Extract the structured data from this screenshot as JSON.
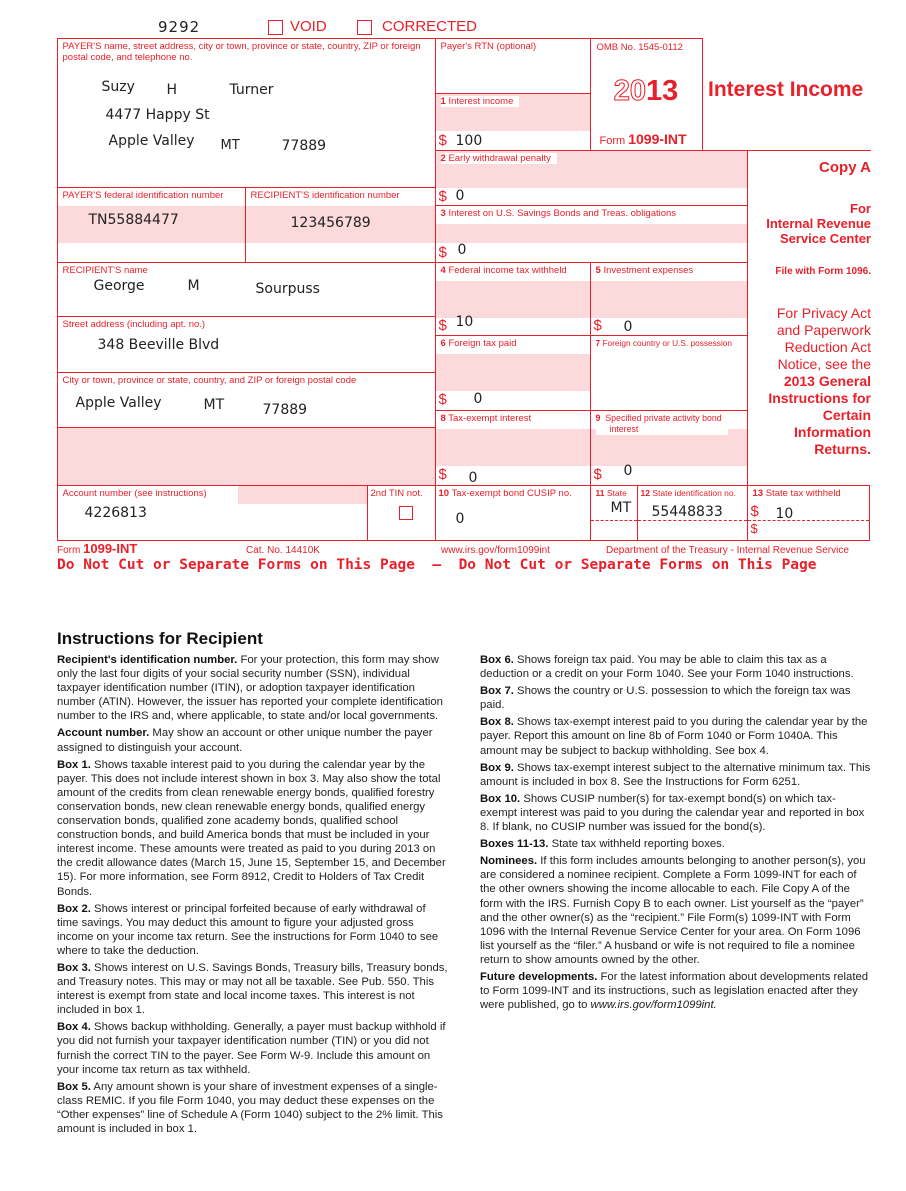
{
  "header": {
    "form_id": "9292",
    "void_label": "VOID",
    "corrected_label": "CORRECTED",
    "void_checked": false,
    "corrected_checked": false
  },
  "payer": {
    "label": "PAYER'S name, street address, city or town, province or state, country, ZIP or foreign postal code, and telephone no.",
    "first": "Suzy",
    "middle": "H",
    "last": "Turner",
    "street": "4477 Happy St",
    "city": "Apple Valley",
    "state": "MT",
    "zip": "77889"
  },
  "rtn": {
    "label": "Payer's RTN (optional)",
    "value": ""
  },
  "omb": {
    "label": "OMB No. 1545-0112",
    "year_outline": "20",
    "year_bold": "13",
    "form_prefix": "Form",
    "form_name": "1099-INT"
  },
  "title": "Interest Income",
  "boxes": {
    "b1": {
      "num": "1",
      "label": "Interest income",
      "value": "100"
    },
    "b2": {
      "num": "2",
      "label": "Early withdrawal penalty",
      "value": "0"
    },
    "b3": {
      "num": "3",
      "label": "Interest on U.S. Savings Bonds and Treas. obligations",
      "value": "0"
    },
    "b4": {
      "num": "4",
      "label": "Federal income tax withheld",
      "value": "10"
    },
    "b5": {
      "num": "5",
      "label": "Investment expenses",
      "value": "0"
    },
    "b6": {
      "num": "6",
      "label": "Foreign tax paid",
      "value": "0"
    },
    "b7": {
      "num": "7",
      "label": "Foreign country or U.S. possession",
      "value": ""
    },
    "b8": {
      "num": "8",
      "label": "Tax-exempt interest",
      "value": "0"
    },
    "b9": {
      "num": "9",
      "label": "Specified private activity bond",
      "label2": "interest",
      "value": "0"
    },
    "b10": {
      "num": "10",
      "label": "Tax-exempt bond CUSIP no.",
      "value": "0"
    },
    "b11": {
      "num": "11",
      "label": "State",
      "value": "MT"
    },
    "b12": {
      "num": "12",
      "label": "State identification no.",
      "value": "55448833"
    },
    "b13": {
      "num": "13",
      "label": "State tax withheld",
      "value": "10",
      "value2": ""
    }
  },
  "currency": "$",
  "payer_fed_id": {
    "label": "PAYER'S federal identification number",
    "value": "TN55884477"
  },
  "recipient_id": {
    "label": "RECIPIENT'S identification number",
    "value": "123456789"
  },
  "recipient": {
    "name_label": "RECIPIENT'S name",
    "first": "George",
    "middle": "M",
    "last": "Sourpuss",
    "street_label": "Street address (including apt. no.)",
    "street": "348 Beeville Blvd",
    "city_label": "City or town, province or state, country, and ZIP or foreign postal code",
    "city": "Apple Valley",
    "state": "MT",
    "zip": "77889"
  },
  "account": {
    "label": "Account number (see instructions)",
    "value": "4226813"
  },
  "tin2": {
    "label": "2nd TIN not.",
    "checked": false
  },
  "copy_panel": {
    "copy": "Copy A",
    "for": "For",
    "irs1": "Internal Revenue",
    "irs2": "Service Center",
    "file_with": "File with Form 1096.",
    "privacy": [
      "For Privacy Act",
      "and Paperwork",
      "Reduction Act",
      "Notice, see the"
    ],
    "privacy_bold": [
      "2013 General",
      "Instructions for",
      "Certain",
      "Information",
      "Returns."
    ]
  },
  "footer": {
    "form_prefix": "Form",
    "form_name": "1099-INT",
    "cat_no": "Cat. No. 14410K",
    "url": "www.irs.gov/form1099int",
    "dept": "Department of the Treasury - Internal Revenue Service",
    "do_not_cut": "Do Not Cut or Separate Forms on This Page  —  Do Not Cut or Separate Forms on This Page"
  },
  "instructions": {
    "title": "Instructions for Recipient",
    "left": [
      {
        "head": "Recipient's identification number.",
        "text": " For your protection, this form may show only the last four digits of your social security number (SSN), individual taxpayer identification number (ITIN), or adoption taxpayer identification number (ATIN). However, the issuer has reported your complete identification number to the IRS and, where applicable, to state and/or local governments."
      },
      {
        "head": "Account number.",
        "text": " May show an account or other unique number the payer assigned to distinguish your account."
      },
      {
        "head": "Box 1.",
        "text": " Shows taxable interest paid to you during the calendar year by the payer. This does not include interest shown in box 3. May also show the total amount of the credits from clean renewable energy bonds, qualified forestry conservation bonds, new clean renewable energy bonds, qualified energy conservation bonds, qualified zone academy bonds, qualified school construction bonds, and build America bonds that must be included in your interest income. These amounts were treated as paid to you during 2013 on the credit allowance dates (March 15, June 15, September 15, and December 15). For more information, see Form 8912, Credit to Holders of Tax Credit Bonds."
      },
      {
        "head": "Box 2.",
        "text": " Shows interest or principal forfeited because of early withdrawal of time savings. You may deduct this amount to figure your adjusted gross income on your income tax return. See the instructions for Form 1040 to see where to take the deduction."
      },
      {
        "head": "Box 3.",
        "text": " Shows interest on U.S. Savings Bonds, Treasury bills, Treasury bonds, and Treasury notes. This may or may not all be taxable. See Pub. 550. This interest is exempt from state and local income taxes. This interest is not included in box 1."
      },
      {
        "head": "Box 4.",
        "text": " Shows backup withholding. Generally, a payer must backup withhold if you did not furnish your taxpayer identification number (TIN) or you did not furnish the correct TIN to the payer. See Form W-9. Include this amount on your income tax return as tax withheld."
      },
      {
        "head": "Box 5.",
        "text": " Any amount shown is your share of investment expenses of a single-class REMIC. If you file Form 1040, you may deduct these expenses on the “Other expenses” line of Schedule A (Form 1040) subject to the 2% limit. This amount is included in box 1."
      }
    ],
    "right": [
      {
        "head": "Box 6.",
        "text": " Shows foreign tax paid. You may be able to claim this tax as a deduction or a credit on your Form 1040. See your Form 1040 instructions."
      },
      {
        "head": "Box 7.",
        "text": " Shows the country or U.S. possession to which the foreign tax was paid."
      },
      {
        "head": "Box 8.",
        "text": " Shows tax-exempt interest paid to you during the calendar year by the payer. Report this amount on line 8b of Form 1040 or Form 1040A. This amount may be subject to backup withholding. See box 4."
      },
      {
        "head": "Box 9.",
        "text": " Shows tax-exempt interest subject to the alternative minimum tax. This amount is included in box 8. See the Instructions for Form 6251."
      },
      {
        "head": "Box 10.",
        "text": " Shows CUSIP number(s) for tax-exempt bond(s) on which tax-exempt interest was paid to you during the calendar year and reported in box 8. If blank, no CUSIP number was issued for the bond(s)."
      },
      {
        "head": "Boxes 11-13.",
        "text": " State tax withheld reporting boxes."
      },
      {
        "head": "Nominees.",
        "text": " If this form includes amounts belonging to another person(s), you are considered a nominee recipient. Complete a Form 1099-INT for each of the other owners showing the income allocable to each. File Copy A of the form with the IRS. Furnish Copy B to each owner. List yourself as the “payer” and the other owner(s) as the “recipient.” File Form(s) 1099-INT with Form 1096 with the Internal Revenue Service Center for your area. On Form 1096 list yourself as the “filer.” A husband or wife is not required to file a nominee return to show amounts owned by the other."
      },
      {
        "head": "Future developments.",
        "text": " For the latest information about developments related to Form 1099-INT and its instructions, such as legislation enacted after they were published, go to ",
        "italic": "www.irs.gov/form1099int."
      }
    ]
  },
  "colors": {
    "form_red": "#e8202a",
    "shade_pink": "#fcd9da",
    "fill_text": "#222222"
  }
}
